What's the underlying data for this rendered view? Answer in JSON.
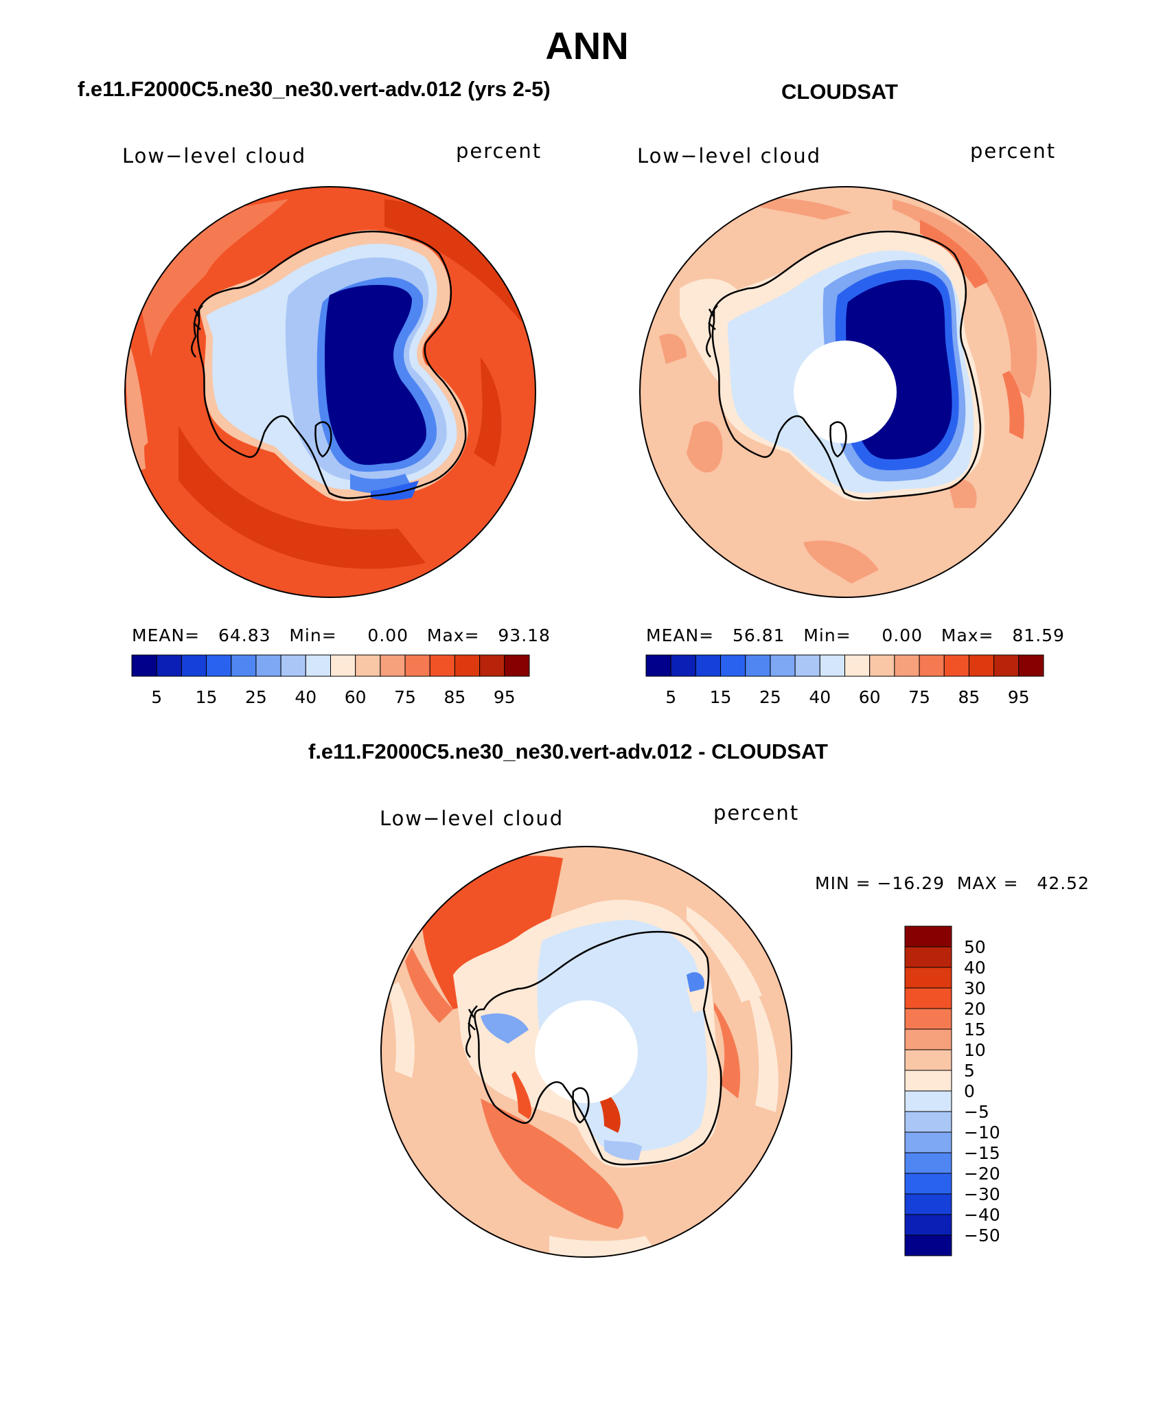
{
  "page_title": "ANN",
  "panels": [
    {
      "title": "f.e11.F2000C5.ne30_ne30.vert-adv.012 (yrs 2-5)",
      "left_label": "Low−level cloud",
      "right_label": "percent",
      "stats": "MEAN=   64.83   Min=     0.00   Max=   93.18",
      "colorbar_ticks": [
        "5",
        "15",
        "25",
        "40",
        "60",
        "75",
        "85",
        "95"
      ]
    },
    {
      "title": "CLOUDSAT",
      "left_label": "Low−level cloud",
      "right_label": "percent",
      "stats": "MEAN=   56.81   Min=     0.00   Max=   81.59",
      "colorbar_ticks": [
        "5",
        "15",
        "25",
        "40",
        "60",
        "75",
        "85",
        "95"
      ]
    },
    {
      "title": "f.e11.F2000C5.ne30_ne30.vert-adv.012 - CLOUDSAT",
      "left_label": "Low−level cloud",
      "right_label": "percent",
      "stats": "MIN = −16.29  MAX =   42.52",
      "colorbar_ticks": [
        "50",
        "40",
        "30",
        "20",
        "15",
        "10",
        "5",
        "0",
        "−5",
        "−10",
        "−15",
        "−20",
        "−30",
        "−40",
        "−50"
      ]
    }
  ],
  "colors": {
    "abs_scale": [
      "#00008b",
      "#0a1fb5",
      "#1540d9",
      "#2a62f0",
      "#4f86f2",
      "#7ea7f4",
      "#a9c6f7",
      "#d3e6fb",
      "#fde9d6",
      "#f9c6a6",
      "#f7a07c",
      "#f57a52",
      "#f15327",
      "#de3a0f",
      "#b8240a",
      "#870000"
    ],
    "diff_scale": [
      "#870000",
      "#b8240a",
      "#de3a0f",
      "#f15327",
      "#f57a52",
      "#f7a07c",
      "#f9c6a6",
      "#fde9d6",
      "#d3e6fb",
      "#a9c6f7",
      "#7ea7f4",
      "#4f86f2",
      "#2a62f0",
      "#1540d9",
      "#0a1fb5",
      "#00008b"
    ]
  }
}
